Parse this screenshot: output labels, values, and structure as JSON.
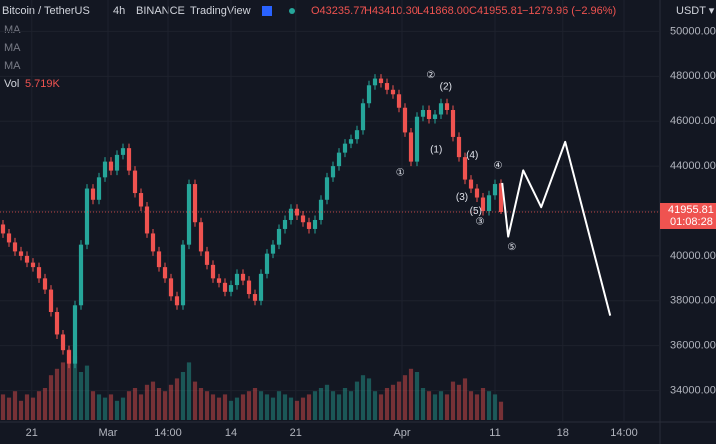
{
  "header": {
    "symbol": "Bitcoin / TetherUS",
    "interval": "4h",
    "exchange": "BINANCE",
    "source": "TradingView",
    "open": "O43235.77",
    "high": "H43410.30",
    "low": "L41868.00",
    "close": "C41955.81",
    "change": "−1279.96 (−2.96%)",
    "ma": [
      "MA",
      "MA",
      "MA"
    ],
    "vol_label": "Vol",
    "vol_value": "5.719K",
    "currency": "USDT ▾",
    "last_price": "41955.81",
    "countdown": "01:08:28"
  },
  "chart_data": {
    "type": "candlestick",
    "up_color": "#26a69a",
    "down_color": "#ef5350",
    "open": [
      41400,
      41000,
      40600,
      40200,
      40000,
      39700,
      39500,
      39000,
      38500,
      37500,
      36500,
      35800,
      35200,
      37800,
      40500,
      43000,
      42500,
      43500,
      44200,
      43800,
      44500,
      44800,
      43800,
      42800,
      42200,
      41000,
      40200,
      39500,
      39000,
      38200,
      37800,
      40500,
      43200,
      41500,
      40200,
      39600,
      39000,
      38800,
      38400,
      38700,
      39200,
      38900,
      38300,
      38000,
      39200,
      40100,
      40500,
      41200,
      41600,
      42100,
      41800,
      41500,
      41200,
      41600,
      42500,
      43500,
      44000,
      44600,
      45000,
      45200,
      45600,
      46800,
      47600,
      47900,
      47700,
      47400,
      47200,
      46600,
      45500,
      44200,
      46200,
      46500,
      46100,
      46300,
      46800,
      46500,
      45300,
      44400,
      43400,
      43000,
      42600,
      42000,
      42700,
      43235.77
    ],
    "high": [
      41600,
      41200,
      40800,
      40400,
      40200,
      39900,
      39700,
      39200,
      38700,
      37700,
      36700,
      36000,
      38000,
      40700,
      43200,
      43200,
      43700,
      44400,
      44400,
      44700,
      45000,
      45000,
      44000,
      43000,
      42400,
      41200,
      40400,
      39700,
      39200,
      38400,
      40700,
      43400,
      43400,
      41700,
      40400,
      39800,
      39200,
      39000,
      38900,
      39400,
      39400,
      39100,
      38500,
      39400,
      40300,
      40700,
      41400,
      41800,
      42300,
      42300,
      42000,
      41700,
      41800,
      42700,
      43700,
      44200,
      44800,
      45200,
      45400,
      45800,
      47000,
      47800,
      48100,
      48100,
      47900,
      47600,
      47400,
      46800,
      45700,
      46400,
      46700,
      46700,
      46500,
      47000,
      47000,
      46700,
      45500,
      44600,
      43600,
      43200,
      42800,
      42900,
      43400,
      43410.3
    ],
    "low": [
      40800,
      40400,
      40000,
      39800,
      39500,
      39300,
      38800,
      38300,
      37300,
      36300,
      35600,
      35000,
      35000,
      37600,
      40300,
      42300,
      42300,
      43300,
      43600,
      43600,
      44300,
      43600,
      42600,
      42000,
      40800,
      40000,
      39300,
      38800,
      38000,
      37600,
      37600,
      40300,
      41300,
      40000,
      39400,
      38800,
      38600,
      38200,
      38200,
      38500,
      38700,
      38100,
      37800,
      37800,
      39000,
      39900,
      40300,
      41000,
      41400,
      41600,
      41300,
      41000,
      41000,
      41400,
      42300,
      43300,
      43800,
      44400,
      44800,
      45000,
      45400,
      46600,
      47400,
      47500,
      47200,
      47000,
      46400,
      45300,
      44000,
      44000,
      46000,
      45900,
      45900,
      46100,
      46300,
      45100,
      44200,
      43200,
      42800,
      42400,
      41800,
      41800,
      42500,
      41868
    ],
    "close": [
      41000,
      40600,
      40200,
      40000,
      39700,
      39500,
      39000,
      38500,
      37500,
      36500,
      35800,
      35200,
      37800,
      40500,
      43000,
      42500,
      43500,
      44200,
      43800,
      44500,
      44800,
      43800,
      42800,
      42200,
      41000,
      40200,
      39500,
      39000,
      38200,
      37800,
      40500,
      43200,
      41500,
      40200,
      39600,
      39000,
      38800,
      38400,
      38700,
      39200,
      38900,
      38300,
      38000,
      39200,
      40100,
      40500,
      41200,
      41600,
      42100,
      41800,
      41500,
      41200,
      41600,
      42500,
      43500,
      44000,
      44600,
      45000,
      45200,
      45600,
      46800,
      47600,
      47900,
      47700,
      47400,
      47200,
      46600,
      45500,
      44200,
      46200,
      46500,
      46100,
      46300,
      46800,
      46500,
      45300,
      44400,
      43400,
      43000,
      42600,
      42000,
      42700,
      43200,
      41955.81
    ],
    "volume": [
      8,
      7,
      9,
      6,
      8,
      7,
      9,
      10,
      14,
      16,
      18,
      22,
      20,
      15,
      17,
      9,
      8,
      7,
      8,
      6,
      7,
      9,
      10,
      8,
      11,
      12,
      10,
      9,
      11,
      13,
      15,
      18,
      12,
      10,
      9,
      8,
      7,
      8,
      6,
      7,
      8,
      9,
      10,
      9,
      8,
      7,
      9,
      8,
      7,
      6,
      7,
      8,
      9,
      10,
      11,
      9,
      8,
      10,
      9,
      12,
      14,
      13,
      9,
      8,
      10,
      11,
      12,
      14,
      16,
      15,
      10,
      9,
      8,
      9,
      8,
      12,
      11,
      13,
      9,
      8,
      10,
      9,
      8,
      5.719
    ],
    "xlim": [
      0,
      110
    ],
    "xticks": [
      {
        "value": 5.3,
        "label": "21"
      },
      {
        "value": 18,
        "label": "Mar"
      },
      {
        "value": 28,
        "label": "14:00"
      },
      {
        "value": 38.5,
        "label": "14"
      },
      {
        "value": 49.3,
        "label": "21"
      },
      {
        "value": 67,
        "label": "Apr"
      },
      {
        "value": 82.5,
        "label": "11"
      },
      {
        "value": 93.8,
        "label": "18"
      },
      {
        "value": 104,
        "label": "14:00"
      }
    ],
    "ylim": [
      32600,
      51400
    ],
    "yticks": [
      {
        "value": 34000,
        "label": "34000.00"
      },
      {
        "value": 36000,
        "label": "36000.00"
      },
      {
        "value": 38000,
        "label": "38000.00"
      },
      {
        "value": 40000,
        "label": "40000.00"
      },
      {
        "value": 42000,
        "label": "42000.00"
      },
      {
        "value": 44000,
        "label": "44000.00"
      },
      {
        "value": 46000,
        "label": "46000.00"
      },
      {
        "value": 48000,
        "label": "48000.00"
      },
      {
        "value": 50000,
        "label": "50000.00"
      }
    ],
    "y2lim": [
      0,
      25
    ],
    "projection": {
      "color": "#ffffff",
      "x": [
        83.7,
        84.7,
        87.2,
        90.2,
        94.2,
        101.7
      ],
      "y": [
        43250,
        40860,
        43810,
        42170,
        45080,
        37340
      ]
    },
    "annotations": [
      {
        "text": "①",
        "x": 66.7,
        "y": 43700
      },
      {
        "text": "②",
        "x": 71.8,
        "y": 48050
      },
      {
        "text": "(2)",
        "x": 74.3,
        "y": 47520
      },
      {
        "text": "(1)",
        "x": 72.7,
        "y": 44720
      },
      {
        "text": "(4)",
        "x": 78.7,
        "y": 44480
      },
      {
        "text": "④",
        "x": 83,
        "y": 44020
      },
      {
        "text": "(3)",
        "x": 77,
        "y": 42600
      },
      {
        "text": "(5)",
        "x": 79.3,
        "y": 41990
      },
      {
        "text": "③",
        "x": 80,
        "y": 41520
      },
      {
        "text": "⑤",
        "x": 85.3,
        "y": 40390
      }
    ]
  }
}
